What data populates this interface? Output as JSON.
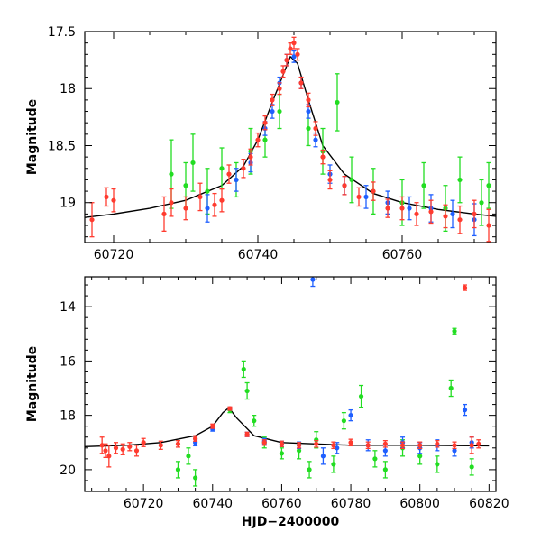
{
  "chart_data": [
    {
      "type": "scatter",
      "panel": "top",
      "title": "",
      "xlabel": "",
      "ylabel": "Magnitude",
      "xlim": [
        60716,
        60773
      ],
      "ylim": [
        19.35,
        17.5
      ],
      "y_inverted": true,
      "x_ticks": [
        60720,
        60740,
        60760
      ],
      "y_ticks": [
        17.5,
        18,
        18.5,
        19
      ],
      "x_tick_labels": [
        "60720",
        "60740",
        "60760"
      ],
      "y_tick_labels": [
        "17.5",
        "18",
        "18.5",
        "19"
      ],
      "legend": "none",
      "model_curve": {
        "color": "#000000",
        "x": [
          60716,
          60720,
          60725,
          60730,
          60735,
          60738,
          60740,
          60742,
          60743.5,
          60744.5,
          60745.5,
          60747,
          60749,
          60752,
          60756,
          60760,
          60765,
          60770,
          60773
        ],
        "y": [
          19.13,
          19.1,
          19.05,
          18.98,
          18.85,
          18.68,
          18.45,
          18.12,
          17.88,
          17.72,
          17.78,
          18.1,
          18.5,
          18.75,
          18.92,
          19.0,
          19.06,
          19.1,
          19.12
        ]
      },
      "series": [
        {
          "color": "#ff3b2f",
          "band": "red",
          "x": [
            60717,
            60719,
            60720,
            60727,
            60728,
            60730,
            60732,
            60734,
            60735,
            60736,
            60738,
            60739,
            60740,
            60741,
            60742,
            60743,
            60743.5,
            60744,
            60744.5,
            60745,
            60745.5,
            60746,
            60747,
            60748,
            60749,
            60750,
            60752,
            60754,
            60756,
            60758,
            60760,
            60762,
            60764,
            60766,
            60768,
            60770,
            60772
          ],
          "y": [
            19.15,
            18.95,
            18.98,
            19.1,
            19.0,
            19.05,
            18.95,
            19.02,
            18.98,
            18.75,
            18.7,
            18.6,
            18.45,
            18.3,
            18.1,
            18.0,
            17.85,
            17.75,
            17.65,
            17.6,
            17.7,
            17.95,
            18.1,
            18.35,
            18.6,
            18.8,
            18.85,
            18.95,
            18.9,
            19.05,
            19.05,
            19.1,
            19.08,
            19.12,
            19.15,
            19.1,
            19.2
          ],
          "err": [
            0.15,
            0.08,
            0.1,
            0.15,
            0.12,
            0.1,
            0.12,
            0.1,
            0.1,
            0.08,
            0.08,
            0.07,
            0.06,
            0.06,
            0.05,
            0.05,
            0.05,
            0.05,
            0.05,
            0.05,
            0.05,
            0.05,
            0.06,
            0.06,
            0.06,
            0.08,
            0.08,
            0.08,
            0.08,
            0.08,
            0.1,
            0.1,
            0.1,
            0.1,
            0.12,
            0.12,
            0.14
          ]
        },
        {
          "color": "#1f5fff",
          "band": "blue",
          "x": [
            60733,
            60737,
            60739,
            60741,
            60742,
            60743,
            60744,
            60745,
            60746,
            60747,
            60748,
            60750,
            60752,
            60755,
            60758,
            60761,
            60764,
            60767,
            60770
          ],
          "y": [
            19.05,
            18.8,
            18.65,
            18.35,
            18.2,
            17.95,
            17.75,
            17.72,
            17.95,
            18.2,
            18.45,
            18.75,
            18.85,
            18.95,
            19.0,
            19.05,
            19.05,
            19.1,
            19.15
          ],
          "err": [
            0.12,
            0.1,
            0.08,
            0.06,
            0.06,
            0.05,
            0.05,
            0.05,
            0.05,
            0.06,
            0.06,
            0.08,
            0.08,
            0.1,
            0.1,
            0.1,
            0.12,
            0.12,
            0.14
          ]
        },
        {
          "color": "#22dd22",
          "band": "green",
          "x": [
            60728,
            60730,
            60731,
            60733,
            60735,
            60737,
            60739,
            60741,
            60743,
            60747,
            60749,
            60751,
            60753,
            60756,
            60760,
            60763,
            60766,
            60768,
            60771,
            60772
          ],
          "y": [
            18.75,
            18.85,
            18.65,
            18.9,
            18.7,
            18.8,
            18.55,
            18.45,
            18.2,
            18.35,
            18.55,
            18.12,
            18.8,
            18.9,
            19.0,
            18.85,
            19.05,
            18.8,
            19.0,
            18.85
          ],
          "err": [
            0.3,
            0.2,
            0.25,
            0.2,
            0.18,
            0.15,
            0.2,
            0.15,
            0.15,
            0.15,
            0.2,
            0.25,
            0.2,
            0.2,
            0.2,
            0.2,
            0.2,
            0.2,
            0.2,
            0.2
          ]
        }
      ]
    },
    {
      "type": "scatter",
      "panel": "bottom",
      "title": "",
      "xlabel": "HJD−2400000",
      "ylabel": "Magnitude",
      "xlim": [
        60703,
        60822
      ],
      "ylim": [
        20.8,
        12.9
      ],
      "y_inverted": true,
      "x_ticks": [
        60720,
        60740,
        60760,
        60780,
        60800,
        60820
      ],
      "y_ticks": [
        14,
        16,
        18,
        20
      ],
      "x_tick_labels": [
        "60720",
        "60740",
        "60760",
        "60780",
        "60800",
        "60820"
      ],
      "y_tick_labels": [
        "14",
        "16",
        "18",
        "20"
      ],
      "legend": "none",
      "model_curve": {
        "color": "#000000",
        "x": [
          60703,
          60715,
          60725,
          60735,
          60740,
          60743,
          60744.7,
          60747,
          60752,
          60760,
          60780,
          60800,
          60820
        ],
        "y": [
          19.15,
          19.1,
          19.0,
          18.75,
          18.4,
          17.9,
          17.72,
          18.1,
          18.75,
          19.0,
          19.1,
          19.1,
          19.12
        ]
      },
      "series": [
        {
          "color": "#ff3b2f",
          "band": "red",
          "x": [
            60708,
            60709,
            60710,
            60712,
            60714,
            60716,
            60718,
            60720,
            60725,
            60730,
            60735,
            60740,
            60745,
            60750,
            60755,
            60760,
            60765,
            60770,
            60775,
            60780,
            60785,
            60790,
            60795,
            60800,
            60805,
            60810,
            60813,
            60815,
            60817
          ],
          "y": [
            19.1,
            19.3,
            19.5,
            19.2,
            19.25,
            19.15,
            19.3,
            19.0,
            19.1,
            19.05,
            18.85,
            18.4,
            17.75,
            18.7,
            19.0,
            19.05,
            19.1,
            19.05,
            19.1,
            19.0,
            19.1,
            19.05,
            19.1,
            19.1,
            19.05,
            19.1,
            13.3,
            19.1,
            19.05
          ],
          "err": [
            0.3,
            0.25,
            0.4,
            0.2,
            0.2,
            0.15,
            0.2,
            0.15,
            0.15,
            0.12,
            0.1,
            0.08,
            0.06,
            0.08,
            0.1,
            0.1,
            0.1,
            0.12,
            0.12,
            0.12,
            0.12,
            0.12,
            0.12,
            0.12,
            0.12,
            0.12,
            0.1,
            0.3,
            0.15
          ]
        },
        {
          "color": "#1f5fff",
          "band": "blue",
          "x": [
            60735,
            60740,
            60745,
            60750,
            60755,
            60760,
            60765,
            60769,
            60772,
            60776,
            60780,
            60785,
            60790,
            60795,
            60800,
            60805,
            60810,
            60813,
            60815
          ],
          "y": [
            19.0,
            18.5,
            17.75,
            18.7,
            18.95,
            19.05,
            19.1,
            13.0,
            19.5,
            19.2,
            18.0,
            19.1,
            19.3,
            19.0,
            19.2,
            19.1,
            19.3,
            17.8,
            19.0
          ],
          "err": [
            0.12,
            0.08,
            0.05,
            0.08,
            0.1,
            0.1,
            0.12,
            0.25,
            0.3,
            0.2,
            0.2,
            0.2,
            0.2,
            0.2,
            0.2,
            0.2,
            0.2,
            0.2,
            0.2
          ]
        },
        {
          "color": "#22dd22",
          "band": "green",
          "x": [
            60730,
            60733,
            60735,
            60745,
            60749,
            60750,
            60752,
            60755,
            60760,
            60765,
            60768,
            60770,
            60775,
            60778,
            60783,
            60787,
            60790,
            60795,
            60800,
            60805,
            60809,
            60810,
            60815
          ],
          "y": [
            20.0,
            19.5,
            20.3,
            17.8,
            16.3,
            17.1,
            18.2,
            19.0,
            19.4,
            19.3,
            20.0,
            18.9,
            19.8,
            18.2,
            17.3,
            19.6,
            20.0,
            19.2,
            19.5,
            19.8,
            17.0,
            14.9,
            19.9
          ],
          "err": [
            0.3,
            0.3,
            0.3,
            0.1,
            0.3,
            0.3,
            0.2,
            0.2,
            0.2,
            0.3,
            0.3,
            0.3,
            0.3,
            0.3,
            0.4,
            0.3,
            0.3,
            0.3,
            0.3,
            0.3,
            0.3,
            0.1,
            0.3
          ]
        }
      ]
    }
  ]
}
